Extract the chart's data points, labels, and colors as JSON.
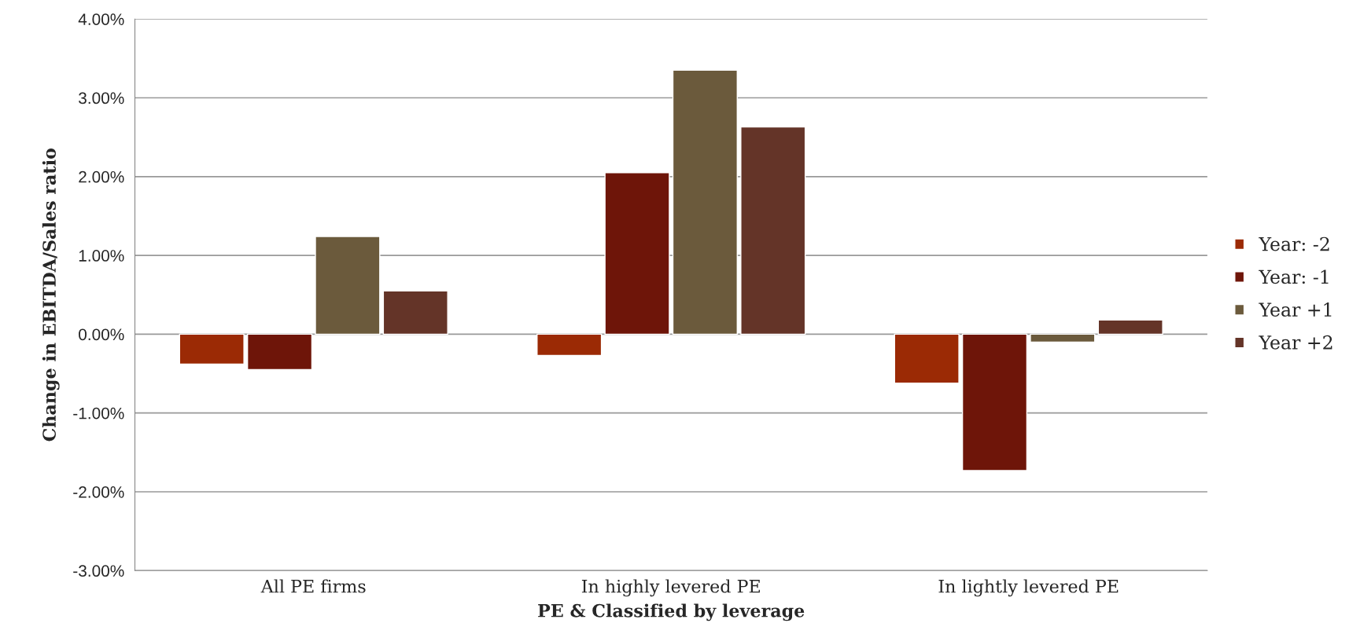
{
  "chart_data": {
    "type": "bar",
    "xlabel": "PE & Classified by leverage",
    "ylabel": "Change in EBITDA/Sales ratio",
    "categories": [
      "All PE firms",
      "In highly levered PE",
      "In lightly levered PE"
    ],
    "series": [
      {
        "name": "Year: -2",
        "color": "#9b2a05",
        "values": [
          -0.38,
          -0.27,
          -0.62
        ]
      },
      {
        "name": "Year: -1",
        "color": "#6e1509",
        "values": [
          -0.45,
          2.05,
          -1.73
        ]
      },
      {
        "name": "Year +1",
        "color": "#6b5a3c",
        "values": [
          1.24,
          3.35,
          -0.1
        ]
      },
      {
        "name": "Year +2",
        "color": "#643428",
        "values": [
          0.55,
          2.63,
          0.18
        ]
      }
    ],
    "ylim": [
      -3,
      4
    ],
    "yticks": [
      {
        "value": -3,
        "label": "-3.00%"
      },
      {
        "value": -2,
        "label": "-2.00%"
      },
      {
        "value": -1,
        "label": "-1.00%"
      },
      {
        "value": 0,
        "label": "0.00%"
      },
      {
        "value": 1,
        "label": "1.00%"
      },
      {
        "value": 2,
        "label": "2.00%"
      },
      {
        "value": 3,
        "label": "3.00%"
      },
      {
        "value": 4,
        "label": "4.00%"
      }
    ],
    "grid": "y",
    "legend": "right"
  }
}
